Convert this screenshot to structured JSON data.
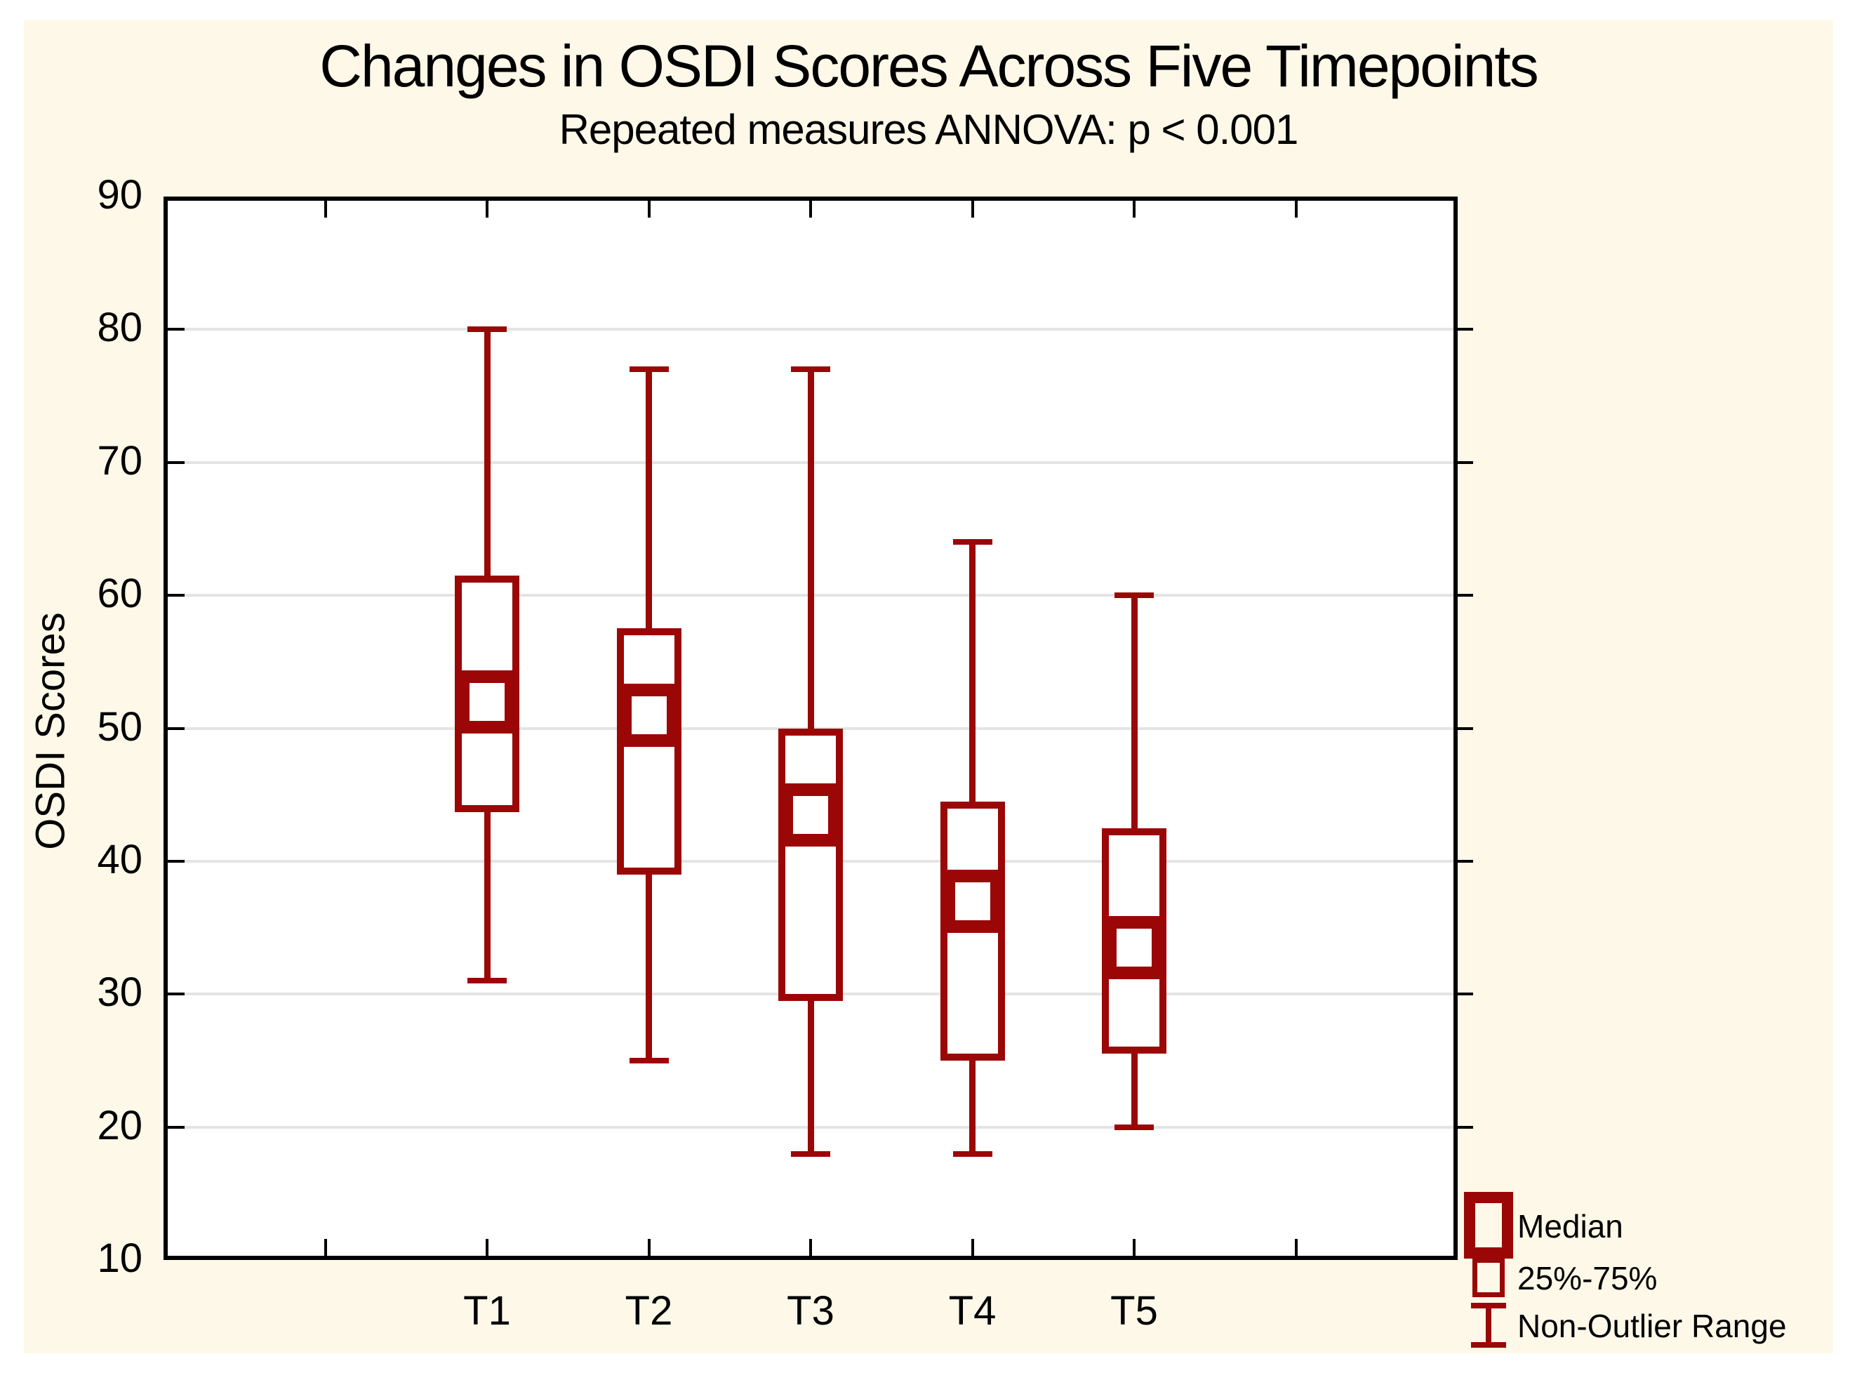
{
  "chart_data": {
    "type": "boxplot",
    "title": "Changes in OSDI Scores Across Five Timepoints",
    "subtitle": "Repeated measures ANNOVA: p < 0.001",
    "xlabel": "",
    "ylabel": "OSDI Scores",
    "ylim": [
      10,
      90
    ],
    "yticks": [
      10,
      20,
      30,
      40,
      50,
      60,
      70,
      80,
      90
    ],
    "categories": [
      "T1",
      "T2",
      "T3",
      "T4",
      "T5"
    ],
    "series": [
      {
        "category": "T1",
        "min": 31,
        "q1": 43.7,
        "median": 52,
        "q3": 61.5,
        "max": 80
      },
      {
        "category": "T2",
        "min": 25,
        "q1": 39,
        "median": 51,
        "q3": 57.5,
        "max": 77
      },
      {
        "category": "T3",
        "min": 18,
        "q1": 29.5,
        "median": 43.5,
        "q3": 50,
        "max": 77
      },
      {
        "category": "T4",
        "min": 18,
        "q1": 25,
        "median": 37,
        "q3": 44.5,
        "max": 64
      },
      {
        "category": "T5",
        "min": 20,
        "q1": 25.5,
        "median": 33.5,
        "q3": 42.5,
        "max": 60
      }
    ],
    "legend": [
      {
        "symbol": "median-square",
        "label": "Median"
      },
      {
        "symbol": "iqr-box",
        "label": "25%-75%"
      },
      {
        "symbol": "whisker",
        "label": "Non-Outlier Range"
      }
    ],
    "layout_hints": {
      "grid": "horizontal-only",
      "legend_position": "bottom-right",
      "x_tick_slots": 7,
      "category_start_slot": 2
    },
    "colors": {
      "box": "#9B0606",
      "grid": "#E4E4E4",
      "frame": "#000000",
      "plot_bg": "#FFFFFF",
      "page_bg": "#FDF8E8"
    }
  }
}
